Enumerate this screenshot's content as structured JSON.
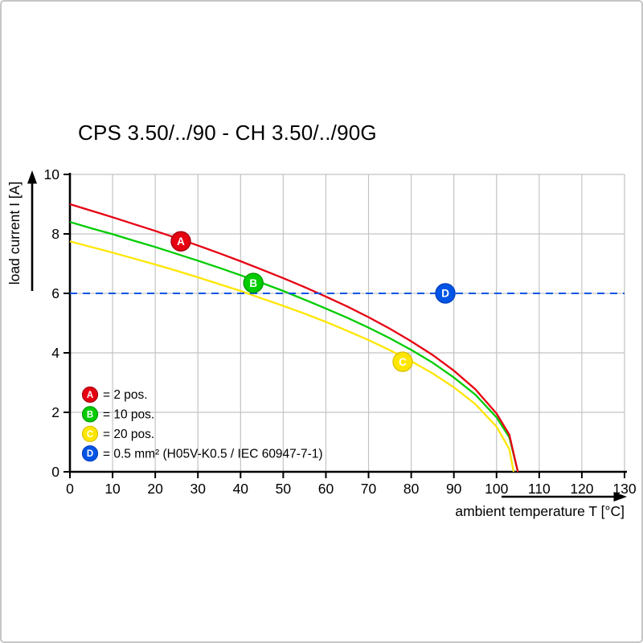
{
  "page": {
    "title": "CPS 3.50/../90 - CH 3.50/../90G"
  },
  "chart_data": {
    "type": "line",
    "title": "CPS 3.50/../90 - CH 3.50/../90G",
    "xlabel": "ambient temperature T [°C]",
    "ylabel": "load current I [A]",
    "xlim": [
      0,
      130
    ],
    "ylim": [
      0,
      10
    ],
    "x_ticks": [
      0,
      10,
      20,
      30,
      40,
      50,
      60,
      70,
      80,
      90,
      100,
      110,
      120,
      130
    ],
    "y_ticks": [
      0,
      2,
      4,
      6,
      8,
      10
    ],
    "grid": true,
    "legend_position": "lower-left",
    "series": [
      {
        "id": "C",
        "name": "20 pos.",
        "color": "#ffe600",
        "style": "solid",
        "points": [
          [
            0,
            7.75
          ],
          [
            5,
            7.56
          ],
          [
            10,
            7.37
          ],
          [
            15,
            7.17
          ],
          [
            20,
            6.97
          ],
          [
            25,
            6.76
          ],
          [
            30,
            6.54
          ],
          [
            35,
            6.31
          ],
          [
            40,
            6.08
          ],
          [
            45,
            5.83
          ],
          [
            50,
            5.58
          ],
          [
            55,
            5.32
          ],
          [
            60,
            5.04
          ],
          [
            65,
            4.74
          ],
          [
            70,
            4.43
          ],
          [
            75,
            4.09
          ],
          [
            80,
            3.72
          ],
          [
            85,
            3.31
          ],
          [
            90,
            2.84
          ],
          [
            95,
            2.28
          ],
          [
            100,
            1.52
          ],
          [
            103,
            0.76
          ],
          [
            104,
            0
          ]
        ]
      },
      {
        "id": "B",
        "name": "10 pos.",
        "color": "#00cc00",
        "style": "solid",
        "points": [
          [
            0,
            8.4
          ],
          [
            5,
            8.19
          ],
          [
            10,
            7.99
          ],
          [
            15,
            7.77
          ],
          [
            20,
            7.56
          ],
          [
            25,
            7.33
          ],
          [
            30,
            7.1
          ],
          [
            35,
            6.86
          ],
          [
            40,
            6.61
          ],
          [
            45,
            6.35
          ],
          [
            50,
            6.08
          ],
          [
            55,
            5.79
          ],
          [
            60,
            5.49
          ],
          [
            65,
            5.18
          ],
          [
            70,
            4.85
          ],
          [
            75,
            4.49
          ],
          [
            80,
            4.1
          ],
          [
            85,
            3.67
          ],
          [
            90,
            3.17
          ],
          [
            95,
            2.6
          ],
          [
            100,
            1.83
          ],
          [
            103,
            1.16
          ],
          [
            105,
            0
          ]
        ]
      },
      {
        "id": "A",
        "name": "2 pos.",
        "color": "#e60012",
        "style": "solid",
        "points": [
          [
            0,
            9.0
          ],
          [
            5,
            8.78
          ],
          [
            10,
            8.56
          ],
          [
            15,
            8.33
          ],
          [
            20,
            8.1
          ],
          [
            25,
            7.86
          ],
          [
            30,
            7.61
          ],
          [
            35,
            7.35
          ],
          [
            40,
            7.08
          ],
          [
            45,
            6.8
          ],
          [
            50,
            6.51
          ],
          [
            55,
            6.21
          ],
          [
            60,
            5.89
          ],
          [
            65,
            5.56
          ],
          [
            70,
            5.2
          ],
          [
            75,
            4.81
          ],
          [
            80,
            4.39
          ],
          [
            85,
            3.93
          ],
          [
            90,
            3.4
          ],
          [
            95,
            2.78
          ],
          [
            100,
            1.96
          ],
          [
            103,
            1.25
          ],
          [
            105,
            0
          ]
        ]
      },
      {
        "id": "D",
        "name": "0.5 mm² (H05V-K0.5 / IEC 60947-7-1)",
        "color": "#0055e6",
        "style": "dashed",
        "points": [
          [
            0,
            6
          ],
          [
            130,
            6
          ]
        ]
      }
    ],
    "markers": [
      {
        "label": "A",
        "x": 26,
        "y": 7.75,
        "color": "#e60012",
        "stroke": "#a50010"
      },
      {
        "label": "B",
        "x": 43,
        "y": 6.35,
        "color": "#00cc00",
        "stroke": "#009900"
      },
      {
        "label": "C",
        "x": 78,
        "y": 3.7,
        "color": "#ffe600",
        "stroke": "#d9c200"
      },
      {
        "label": "D",
        "x": 88,
        "y": 6.0,
        "color": "#0055e6",
        "stroke": "#003fbf"
      }
    ],
    "legend": [
      {
        "key": "A",
        "label": "= 2 pos.",
        "color": "#e60012",
        "stroke": "#a50010"
      },
      {
        "key": "B",
        "label": "= 10 pos.",
        "color": "#00cc00",
        "stroke": "#009900"
      },
      {
        "key": "C",
        "label": "= 20 pos.",
        "color": "#ffe600",
        "stroke": "#d9c200"
      },
      {
        "key": "D",
        "label": "= 0.5 mm² (H05V-K0.5 / IEC 60947-7-1)",
        "color": "#0055e6",
        "stroke": "#003fbf"
      }
    ]
  }
}
